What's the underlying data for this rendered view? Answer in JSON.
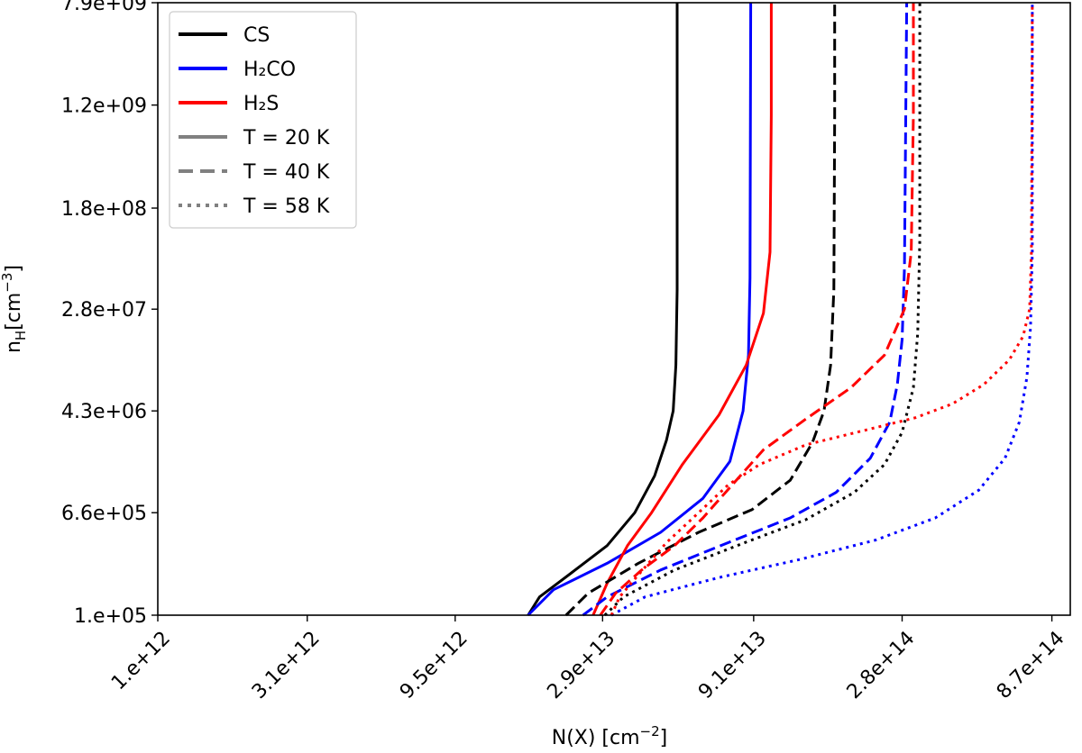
{
  "chart_data": {
    "type": "line",
    "title": "",
    "xlabel_main": "N(X) [cm",
    "xlabel_sup": "−2",
    "xlabel_end": "]",
    "ylabel_main": "n",
    "ylabel_sub": "H",
    "ylabel_mid": "[cm",
    "ylabel_sup": "−3",
    "ylabel_end": "]",
    "x_scale": "log",
    "y_scale": "log",
    "xlim": [
      1000000000000.0,
      1000000000000000.0
    ],
    "ylim": [
      100000.0,
      7900000000.0
    ],
    "x_ticks": [
      {
        "value": 1000000000000.0,
        "label": "1.e+12"
      },
      {
        "value": 3100000000000.0,
        "label": "3.1e+12"
      },
      {
        "value": 9500000000000.0,
        "label": "9.5e+12"
      },
      {
        "value": 29000000000000.0,
        "label": "2.9e+13"
      },
      {
        "value": 91000000000000.0,
        "label": "9.1e+13"
      },
      {
        "value": 280000000000000.0,
        "label": "2.8e+14"
      },
      {
        "value": 870000000000000.0,
        "label": "8.7e+14"
      }
    ],
    "y_ticks": [
      {
        "value": 100000.0,
        "label": "1.e+05"
      },
      {
        "value": 660000.0,
        "label": "6.6e+05"
      },
      {
        "value": 4300000.0,
        "label": "4.3e+06"
      },
      {
        "value": 28000000.0,
        "label": "2.8e+07"
      },
      {
        "value": 180000000.0,
        "label": "1.8e+08"
      },
      {
        "value": 1200000000.0,
        "label": "1.2e+09"
      },
      {
        "value": 7900000000.0,
        "label": "7.9e+09"
      }
    ],
    "legend": {
      "placement": "top-left",
      "entries": [
        {
          "label": "CS",
          "color": "#000000",
          "dash": "solid"
        },
        {
          "label": "H₂CO",
          "color": "#0000ff",
          "dash": "solid"
        },
        {
          "label": "H₂S",
          "color": "#ff0000",
          "dash": "solid"
        },
        {
          "label": "T = 20 K",
          "color": "#808080",
          "dash": "solid"
        },
        {
          "label": "T = 40 K",
          "color": "#808080",
          "dash": "dashed"
        },
        {
          "label": "T = 58 K",
          "color": "#808080",
          "dash": "dotted"
        }
      ]
    },
    "series": [
      {
        "name": "CS, T = 20 K",
        "species": "CS",
        "temperature": "T = 20 K",
        "color": "#000000",
        "dash": "solid",
        "points": [
          [
            16500000000000.0,
            100000.0
          ],
          [
            18000000000000.0,
            140000.0
          ],
          [
            23000000000000.0,
            220000.0
          ],
          [
            30000000000000.0,
            360000.0
          ],
          [
            37000000000000.0,
            660000.0
          ],
          [
            43000000000000.0,
            1300000.0
          ],
          [
            47000000000000.0,
            2500000.0
          ],
          [
            49500000000000.0,
            4300000.0
          ],
          [
            50500000000000.0,
            10000000.0
          ],
          [
            51000000000000.0,
            40000000.0
          ],
          [
            51000000000000.0,
            7900000000.0
          ]
        ]
      },
      {
        "name": "H2CO, T = 20 K",
        "species": "H₂CO",
        "temperature": "T = 20 K",
        "color": "#0000ff",
        "dash": "solid",
        "points": [
          [
            16500000000000.0,
            100000.0
          ],
          [
            20000000000000.0,
            160000.0
          ],
          [
            30000000000000.0,
            260000.0
          ],
          [
            45000000000000.0,
            460000.0
          ],
          [
            62000000000000.0,
            860000.0
          ],
          [
            76000000000000.0,
            1700000.0
          ],
          [
            84000000000000.0,
            4300000.0
          ],
          [
            87500000000000.0,
            12000000.0
          ],
          [
            88500000000000.0,
            50000000.0
          ],
          [
            89000000000000.0,
            7900000000.0
          ]
        ]
      },
      {
        "name": "H2S, T = 20 K",
        "species": "H₂S",
        "temperature": "T = 20 K",
        "color": "#ff0000",
        "dash": "solid",
        "points": [
          [
            27000000000000.0,
            100000.0
          ],
          [
            30000000000000.0,
            180000.0
          ],
          [
            35000000000000.0,
            360000.0
          ],
          [
            42000000000000.0,
            660000.0
          ],
          [
            53000000000000.0,
            1600000.0
          ],
          [
            70000000000000.0,
            4000000.0
          ],
          [
            86000000000000.0,
            10000000.0
          ],
          [
            98000000000000.0,
            26000000.0
          ],
          [
            103000000000000.0,
            80000000.0
          ],
          [
            104000000000000.0,
            1000000000.0
          ],
          [
            104000000000000.0,
            7900000000.0
          ]
        ]
      },
      {
        "name": "CS, T = 40 K",
        "species": "CS",
        "temperature": "T = 40 K",
        "color": "#000000",
        "dash": "dashed",
        "points": [
          [
            22000000000000.0,
            100000.0
          ],
          [
            26000000000000.0,
            150000.0
          ],
          [
            38000000000000.0,
            260000.0
          ],
          [
            60000000000000.0,
            460000.0
          ],
          [
            90000000000000.0,
            700000.0
          ],
          [
            120000000000000.0,
            1200000.0
          ],
          [
            142000000000000.0,
            2400000.0
          ],
          [
            155000000000000.0,
            4300000.0
          ],
          [
            163000000000000.0,
            10000000.0
          ],
          [
            167000000000000.0,
            40000000.0
          ],
          [
            168000000000000.0,
            1000000000.0
          ],
          [
            168000000000000.0,
            7900000000.0
          ]
        ]
      },
      {
        "name": "H2CO, T = 40 K",
        "species": "H₂CO",
        "temperature": "T = 40 K",
        "color": "#0000ff",
        "dash": "dashed",
        "points": [
          [
            25000000000000.0,
            100000.0
          ],
          [
            30000000000000.0,
            140000.0
          ],
          [
            45000000000000.0,
            230000.0
          ],
          [
            75000000000000.0,
            380000.0
          ],
          [
            120000000000000.0,
            600000.0
          ],
          [
            170000000000000.0,
            960000.0
          ],
          [
            220000000000000.0,
            1800000.0
          ],
          [
            255000000000000.0,
            3500000.0
          ],
          [
            270000000000000.0,
            7000000.0
          ],
          [
            280000000000000.0,
            16000000.0
          ],
          [
            285000000000000.0,
            60000000.0
          ],
          [
            290000000000000.0,
            7900000000.0
          ]
        ]
      },
      {
        "name": "H2S, T = 40 K",
        "species": "H₂S",
        "temperature": "T = 40 K",
        "color": "#ff0000",
        "dash": "dashed",
        "points": [
          [
            28500000000000.0,
            100000.0
          ],
          [
            32000000000000.0,
            150000.0
          ],
          [
            39000000000000.0,
            230000.0
          ],
          [
            50000000000000.0,
            360000.0
          ],
          [
            62000000000000.0,
            600000.0
          ],
          [
            76000000000000.0,
            1050000.0
          ],
          [
            98000000000000.0,
            2100000.0
          ],
          [
            135000000000000.0,
            3700000.0
          ],
          [
            190000000000000.0,
            6600000.0
          ],
          [
            245000000000000.0,
            12000000.0
          ],
          [
            285000000000000.0,
            28000000.0
          ],
          [
            300000000000000.0,
            80000000.0
          ],
          [
            305000000000000.0,
            1000000000.0
          ],
          [
            305000000000000.0,
            7900000000.0
          ]
        ]
      },
      {
        "name": "CS, T = 58 K",
        "species": "CS",
        "temperature": "T = 58 K",
        "color": "#000000",
        "dash": "dotted",
        "points": [
          [
            29500000000000.0,
            100000.0
          ],
          [
            34000000000000.0,
            140000.0
          ],
          [
            50000000000000.0,
            230000.0
          ],
          [
            85000000000000.0,
            380000.0
          ],
          [
            135000000000000.0,
            580000.0
          ],
          [
            195000000000000.0,
            960000.0
          ],
          [
            245000000000000.0,
            1600000.0
          ],
          [
            280000000000000.0,
            2900000.0
          ],
          [
            305000000000000.0,
            6600000.0
          ],
          [
            315000000000000.0,
            18000000.0
          ],
          [
            320000000000000.0,
            100000000.0
          ],
          [
            320000000000000.0,
            7900000000.0
          ]
        ]
      },
      {
        "name": "H2CO, T = 58 K",
        "species": "H₂CO",
        "temperature": "T = 58 K",
        "color": "#0000ff",
        "dash": "dotted",
        "points": [
          [
            31000000000000.0,
            100000.0
          ],
          [
            40000000000000.0,
            140000.0
          ],
          [
            70000000000000.0,
            200000.0
          ],
          [
            130000000000000.0,
            280000.0
          ],
          [
            230000000000000.0,
            400000.0
          ],
          [
            360000000000000.0,
            600000.0
          ],
          [
            500000000000000.0,
            1000000.0
          ],
          [
            610000000000000.0,
            1800000.0
          ],
          [
            680000000000000.0,
            3500000.0
          ],
          [
            720000000000000.0,
            8000000.0
          ],
          [
            740000000000000.0,
            20000000.0
          ],
          [
            750000000000000.0,
            80000000.0
          ],
          [
            750000000000000.0,
            7900000000.0
          ]
        ]
      },
      {
        "name": "H2S, T = 58 K",
        "species": "H₂S",
        "temperature": "T = 58 K",
        "color": "#ff0000",
        "dash": "dotted",
        "points": [
          [
            31000000000000.0,
            100000.0
          ],
          [
            33000000000000.0,
            140000.0
          ],
          [
            38000000000000.0,
            210000.0
          ],
          [
            47000000000000.0,
            380000.0
          ],
          [
            60000000000000.0,
            660000.0
          ],
          [
            75000000000000.0,
            1100000.0
          ],
          [
            95000000000000.0,
            1600000.0
          ],
          [
            135000000000000.0,
            2300000.0
          ],
          [
            210000000000000.0,
            3000000.0
          ],
          [
            310000000000000.0,
            3800000.0
          ],
          [
            410000000000000.0,
            4900000.0
          ],
          [
            520000000000000.0,
            7000000.0
          ],
          [
            630000000000000.0,
            11000000.0
          ],
          [
            700000000000000.0,
            17000000.0
          ],
          [
            735000000000000.0,
            28000000.0
          ],
          [
            745000000000000.0,
            80000000.0
          ],
          [
            750000000000000.0,
            7900000000.0
          ]
        ]
      }
    ]
  }
}
